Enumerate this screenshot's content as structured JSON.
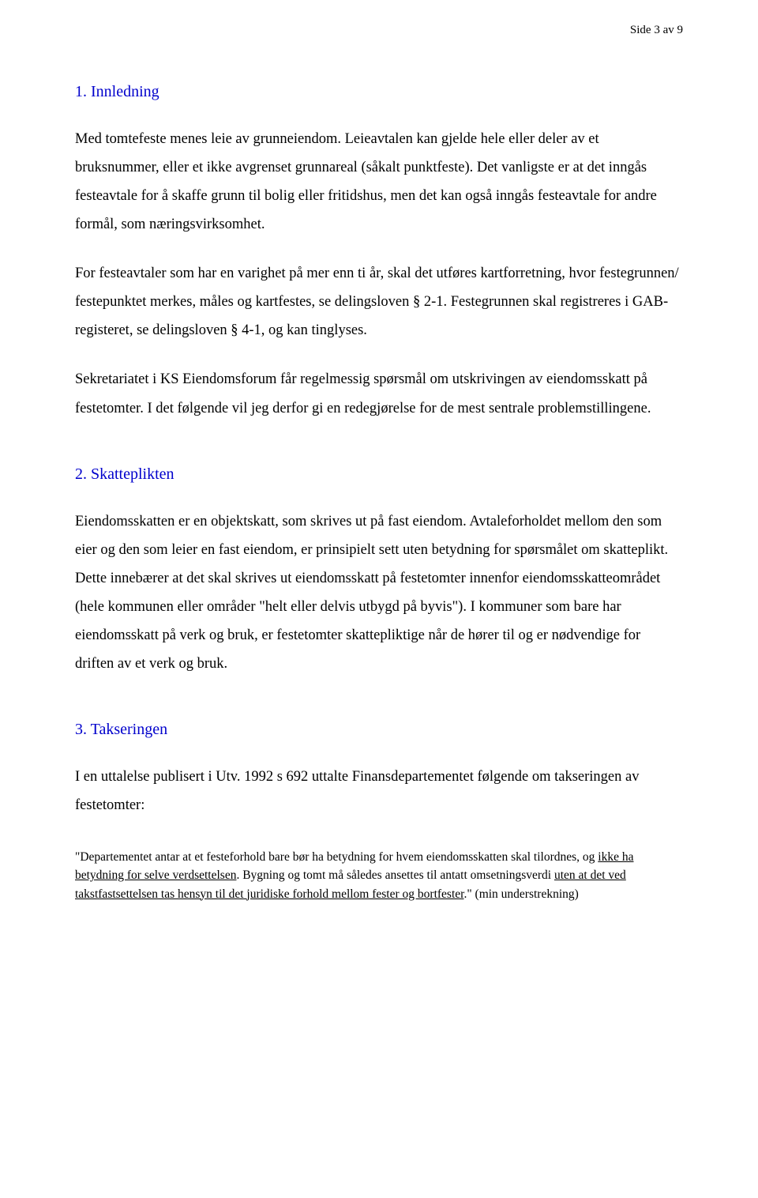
{
  "colors": {
    "heading": "#0000cc",
    "body_text": "#000000",
    "background": "#ffffff"
  },
  "typography": {
    "body_font": "Times New Roman",
    "body_size_pt": 14,
    "heading_size_pt": 15,
    "footnote_size_pt": 12,
    "line_height": 1.95
  },
  "page_header": "Side 3 av 9",
  "sections": [
    {
      "heading": "1. Innledning",
      "paragraphs": [
        "Med tomtefeste menes leie av grunneiendom. Leieavtalen kan gjelde hele eller deler av et bruksnummer, eller et ikke avgrenset grunnareal (såkalt punktfeste). Det vanligste er at det inngås festeavtale for å skaffe grunn til bolig eller fritidshus, men det kan også inngås festeavtale for andre formål, som næringsvirksomhet.",
        "For festeavtaler som har en varighet på mer enn ti år, skal det utføres kartforretning, hvor festegrunnen/ festepunktet merkes, måles og kartfestes, se delingsloven § 2-1. Festegrunnen skal registreres i GAB-registeret, se delingsloven § 4-1, og kan tinglyses.",
        "Sekretariatet i KS Eiendomsforum får regelmessig spørsmål om utskrivingen av eiendomsskatt på festetomter. I det følgende vil jeg derfor gi en redegjørelse for de mest sentrale problemstillingene."
      ]
    },
    {
      "heading": "2. Skatteplikten",
      "paragraphs": [
        "Eiendomsskatten er en objektskatt, som skrives ut på fast eiendom. Avtaleforholdet mellom den som eier og den som leier en fast eiendom, er prinsipielt sett uten betydning for spørsmålet om skatteplikt. Dette innebærer at det skal skrives ut eiendomsskatt på festetomter innenfor eiendomsskatteområdet (hele kommunen eller områder \"helt eller delvis utbygd på byvis\"). I kommuner som bare har eiendomsskatt på verk og bruk, er festetomter skattepliktige når de hører til og er nødvendige for driften av et verk og bruk."
      ]
    },
    {
      "heading": "3. Takseringen",
      "paragraphs": [
        "I en uttalelse publisert i Utv. 1992 s 692 uttalte Finansdepartementet følgende om takseringen av festetomter:"
      ]
    }
  ],
  "footnote": {
    "pre": "\"Departementet antar at et festeforhold bare bør ha betydning for hvem eiendomsskatten skal tilordnes, og ",
    "u1": "ikke ha betydning for selve verdsettelsen",
    "mid": ". Bygning og tomt må således ansettes til antatt omsetningsverdi ",
    "u2": "uten at det ved takstfastsettelsen tas hensyn til det juridiske forhold mellom fester og bortfester",
    "post": ".\" (min understrekning)"
  }
}
